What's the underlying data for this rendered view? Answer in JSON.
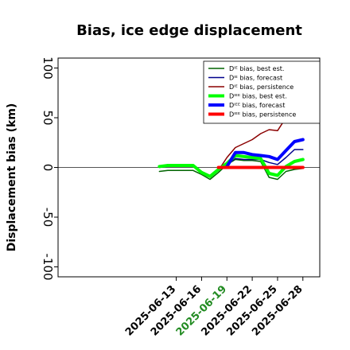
{
  "chart_data": {
    "type": "line",
    "title": "Bias, ice edge displacement",
    "ylabel": "Displacement bias (km)",
    "xlabel": "",
    "ylim": [
      -110,
      110
    ],
    "yticks": [
      -100,
      -50,
      0,
      50,
      100
    ],
    "ytick_labels": [
      "-100",
      "-50",
      "0",
      "50",
      "100"
    ],
    "x_day_range": [
      -1,
      30
    ],
    "xticks": [
      {
        "day": 13,
        "label": "2025-06-13",
        "color": "#000000"
      },
      {
        "day": 16,
        "label": "2025-06-16",
        "color": "#000000"
      },
      {
        "day": 19,
        "label": "2025-06-19",
        "color": "#228b22"
      },
      {
        "day": 22,
        "label": "2025-06-22",
        "color": "#000000"
      },
      {
        "day": 25,
        "label": "2025-06-25",
        "color": "#000000"
      },
      {
        "day": 28,
        "label": "2025-06-28",
        "color": "#000000"
      }
    ],
    "zero_line": true,
    "grid": false,
    "legend_position": "top-right",
    "series": [
      {
        "name": "Dᴵᴱ bias, best est.",
        "color": "#006400",
        "width": 1.5,
        "x": [
          11,
          12,
          13,
          14,
          15,
          16,
          17,
          18,
          19,
          20,
          21,
          22,
          23,
          24,
          25,
          26,
          27,
          28
        ],
        "y": [
          -4,
          -3,
          -3,
          -3,
          -3,
          -7,
          -12,
          -5,
          3,
          8,
          7,
          7,
          6,
          -10,
          -12,
          -4,
          -2,
          -1
        ]
      },
      {
        "name": "Dᴵᴱ bias, forecast",
        "color": "#00008b",
        "width": 1.5,
        "x": [
          11,
          12,
          13,
          14,
          15,
          16,
          17,
          18,
          19,
          20,
          21,
          22,
          23,
          24,
          25,
          26,
          27,
          28
        ],
        "y": [
          0,
          1,
          1,
          1,
          1,
          -4,
          -8,
          -3,
          3,
          9,
          8,
          8,
          8,
          5,
          3,
          10,
          18,
          18
        ]
      },
      {
        "name": "Dᴵᴱ bias, persistence",
        "color": "#8b0000",
        "width": 1.5,
        "x": [
          11,
          12,
          13,
          14,
          15,
          16,
          17,
          18,
          19,
          20,
          21,
          22,
          23,
          24,
          25,
          26,
          27,
          28
        ],
        "y": [
          1,
          1,
          1,
          1,
          1,
          -4,
          -8,
          -3,
          10,
          20,
          24,
          28,
          34,
          38,
          37,
          50,
          70,
          90
        ]
      },
      {
        "name": "Dᴵᴱᴱ bias, best est.",
        "color": "#00ff00",
        "width": 4,
        "x": [
          11,
          12,
          13,
          14,
          15,
          16,
          17,
          18,
          19,
          20,
          21,
          22,
          23,
          24,
          25,
          26,
          27,
          28
        ],
        "y": [
          1,
          2,
          2,
          2,
          2,
          -5,
          -9,
          -2,
          4,
          12,
          11,
          10,
          9,
          -6,
          -8,
          1,
          6,
          8
        ]
      },
      {
        "name": "Dᴵᴱᴱ bias, forecast",
        "color": "#0000ff",
        "width": 4,
        "x": [
          19,
          20,
          21,
          22,
          23,
          24,
          25,
          26,
          27,
          28
        ],
        "y": [
          1,
          15,
          15,
          13,
          12,
          11,
          8,
          17,
          26,
          28
        ]
      },
      {
        "name": "Dᴵᴱᴱ bias, persistence",
        "color": "#ff0000",
        "width": 4,
        "x": [
          18,
          19,
          20,
          21,
          22,
          23,
          24,
          25,
          26,
          27,
          28
        ],
        "y": [
          0,
          0,
          0,
          0,
          0,
          0,
          0,
          0,
          0,
          0,
          0
        ]
      }
    ]
  }
}
